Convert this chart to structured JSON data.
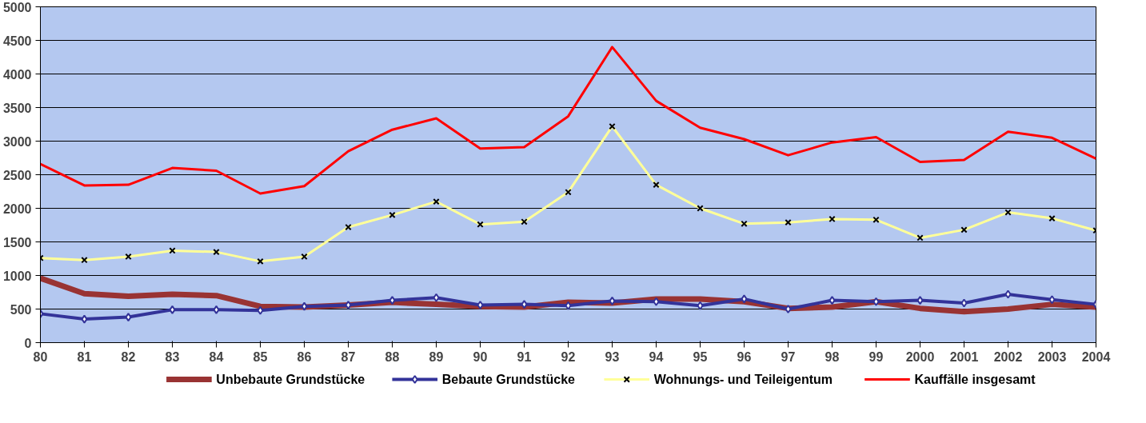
{
  "chart_data": {
    "type": "line",
    "categories": [
      "80",
      "81",
      "82",
      "83",
      "84",
      "85",
      "86",
      "87",
      "88",
      "89",
      "90",
      "91",
      "92",
      "93",
      "94",
      "95",
      "96",
      "97",
      "98",
      "99",
      "2000",
      "2001",
      "2002",
      "2003",
      "2004"
    ],
    "ylim": [
      0,
      5000
    ],
    "yticks": [
      0,
      500,
      1000,
      1500,
      2000,
      2500,
      3000,
      3500,
      4000,
      4500,
      5000
    ],
    "grid": "y",
    "legend": "bottom",
    "series": [
      {
        "name": "Unbebaute Grundstücke",
        "color": "#993333",
        "marker": "none",
        "values": [
          960,
          730,
          690,
          720,
          700,
          540,
          530,
          560,
          600,
          570,
          540,
          530,
          600,
          590,
          650,
          650,
          610,
          510,
          530,
          610,
          510,
          460,
          500,
          570,
          530
        ]
      },
      {
        "name": "Bebaute Grundstücke",
        "color": "#333399",
        "marker": "diamond",
        "values": [
          430,
          350,
          380,
          490,
          490,
          480,
          540,
          560,
          630,
          670,
          560,
          570,
          550,
          620,
          610,
          550,
          650,
          500,
          630,
          610,
          630,
          590,
          720,
          640,
          570
        ]
      },
      {
        "name": "Wohnungs- und Teileigentum",
        "color": "#ffff99",
        "marker": "cross",
        "values": [
          1260,
          1230,
          1280,
          1370,
          1350,
          1210,
          1280,
          1720,
          1900,
          2100,
          1760,
          1800,
          2240,
          3220,
          2350,
          2000,
          1770,
          1790,
          1840,
          1830,
          1560,
          1680,
          1940,
          1850,
          1670
        ]
      },
      {
        "name": "Kauffälle insgesamt",
        "color": "#ff0000",
        "marker": "none",
        "values": [
          2660,
          2340,
          2350,
          2600,
          2560,
          2220,
          2330,
          2850,
          3170,
          3340,
          2890,
          2910,
          3370,
          4400,
          3600,
          3200,
          3030,
          2790,
          2980,
          3060,
          2690,
          2720,
          3140,
          3050,
          2740
        ]
      }
    ]
  }
}
